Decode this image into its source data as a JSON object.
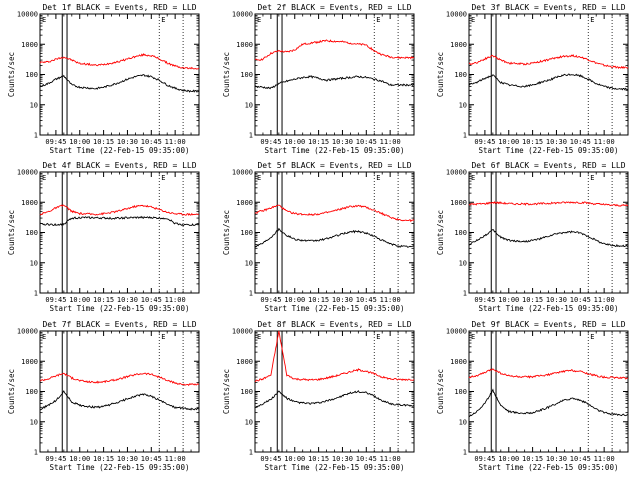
{
  "figure": {
    "title_suffix": "BLACK = Events, RED = LLD",
    "x_ticks": [
      "09:45",
      "10:00",
      "10:15",
      "10:30",
      "10:45",
      "11:00"
    ],
    "y_ticks": [
      "1",
      "10",
      "100",
      "1000",
      "10000"
    ],
    "xlabel": "Start Time (22-Feb-15 09:35:00)",
    "ylabel": "Counts/sec",
    "marker_labels": [
      "E",
      "E"
    ],
    "colors": {
      "events": "#000000",
      "lld": "#ff0000",
      "axes": "#000000"
    }
  },
  "chart_data": [
    {
      "type": "line",
      "title": "Det 1f BLACK = Events, RED = LLD",
      "xlabel": "Start Time (22-Feb-15 09:35:00)",
      "ylabel": "Counts/sec",
      "x_start": "09:35",
      "x_end": "11:15",
      "ylim": [
        1,
        10000
      ],
      "log_y": true,
      "x_minutes": [
        0,
        5,
        10,
        15,
        20,
        25,
        30,
        35,
        40,
        45,
        50,
        55,
        60,
        65,
        70,
        75,
        80,
        85,
        90,
        95,
        100
      ],
      "series": [
        {
          "name": "LLD",
          "color": "#ff0000",
          "values": [
            250,
            260,
            320,
            380,
            300,
            230,
            220,
            200,
            215,
            240,
            270,
            330,
            390,
            450,
            420,
            330,
            240,
            190,
            165,
            160,
            160
          ]
        },
        {
          "name": "Events",
          "color": "#000000",
          "values": [
            40,
            50,
            70,
            90,
            45,
            38,
            36,
            34,
            38,
            45,
            55,
            70,
            85,
            95,
            85,
            65,
            45,
            35,
            30,
            28,
            28
          ]
        }
      ]
    },
    {
      "type": "line",
      "title": "Det 2f BLACK = Events, RED = LLD",
      "xlabel": "Start Time (22-Feb-15 09:35:00)",
      "ylabel": "Counts/sec",
      "x_start": "09:35",
      "x_end": "11:15",
      "ylim": [
        1,
        10000
      ],
      "log_y": true,
      "x_minutes": [
        0,
        5,
        10,
        15,
        20,
        25,
        30,
        35,
        40,
        45,
        50,
        55,
        60,
        65,
        70,
        75,
        80,
        85,
        90,
        95,
        100
      ],
      "series": [
        {
          "name": "LLD",
          "color": "#ff0000",
          "values": [
            300,
            320,
            500,
            600,
            550,
            650,
            1000,
            1100,
            1200,
            1300,
            1250,
            1200,
            1100,
            1000,
            950,
            600,
            450,
            380,
            360,
            360,
            360
          ]
        },
        {
          "name": "Events",
          "color": "#000000",
          "values": [
            40,
            38,
            35,
            50,
            60,
            70,
            80,
            85,
            75,
            65,
            70,
            75,
            80,
            85,
            80,
            70,
            60,
            45,
            45,
            45,
            45
          ]
        }
      ]
    },
    {
      "type": "line",
      "title": "Det 3f BLACK = Events, RED = LLD",
      "xlabel": "Start Time (22-Feb-15 09:35:00)",
      "ylabel": "Counts/sec",
      "x_start": "09:35",
      "x_end": "11:15",
      "ylim": [
        1,
        10000
      ],
      "log_y": true,
      "x_minutes": [
        0,
        5,
        10,
        15,
        20,
        25,
        30,
        35,
        40,
        45,
        50,
        55,
        60,
        65,
        70,
        75,
        80,
        85,
        90,
        95,
        100
      ],
      "series": [
        {
          "name": "LLD",
          "color": "#ff0000",
          "values": [
            220,
            250,
            330,
            420,
            300,
            240,
            230,
            220,
            240,
            270,
            310,
            360,
            400,
            420,
            380,
            310,
            240,
            200,
            180,
            170,
            170
          ]
        },
        {
          "name": "Events",
          "color": "#000000",
          "values": [
            45,
            55,
            75,
            95,
            55,
            45,
            42,
            40,
            45,
            55,
            65,
            80,
            95,
            100,
            90,
            70,
            50,
            40,
            35,
            33,
            33
          ]
        }
      ]
    },
    {
      "type": "line",
      "title": "Det 4f BLACK = Events, RED = LLD",
      "xlabel": "Start Time (22-Feb-15 09:35:00)",
      "ylabel": "Counts/sec",
      "x_start": "09:35",
      "x_end": "11:15",
      "ylim": [
        1,
        10000
      ],
      "log_y": true,
      "x_minutes": [
        0,
        5,
        10,
        15,
        20,
        25,
        30,
        35,
        40,
        45,
        50,
        55,
        60,
        65,
        70,
        75,
        80,
        85,
        90,
        95,
        100
      ],
      "series": [
        {
          "name": "LLD",
          "color": "#ff0000",
          "values": [
            400,
            480,
            650,
            800,
            500,
            420,
            410,
            400,
            420,
            460,
            520,
            620,
            730,
            780,
            700,
            580,
            470,
            420,
            400,
            400,
            400
          ]
        },
        {
          "name": "Events",
          "color": "#000000",
          "values": [
            190,
            185,
            180,
            190,
            300,
            310,
            310,
            305,
            300,
            295,
            300,
            305,
            310,
            315,
            310,
            300,
            295,
            200,
            180,
            180,
            180
          ]
        }
      ]
    },
    {
      "type": "line",
      "title": "Det 5f BLACK = Events, RED = LLD",
      "xlabel": "Start Time (22-Feb-15 09:35:00)",
      "ylabel": "Counts/sec",
      "x_start": "09:35",
      "x_end": "11:15",
      "ylim": [
        1,
        10000
      ],
      "log_y": true,
      "x_minutes": [
        0,
        5,
        10,
        15,
        20,
        25,
        30,
        35,
        40,
        45,
        50,
        55,
        60,
        65,
        70,
        75,
        80,
        85,
        90,
        95,
        100
      ],
      "series": [
        {
          "name": "LLD",
          "color": "#ff0000",
          "values": [
            450,
            520,
            650,
            800,
            500,
            420,
            400,
            390,
            410,
            450,
            520,
            620,
            720,
            760,
            680,
            540,
            420,
            320,
            270,
            250,
            250
          ]
        },
        {
          "name": "Events",
          "color": "#000000",
          "values": [
            35,
            45,
            70,
            130,
            80,
            60,
            55,
            52,
            55,
            62,
            75,
            90,
            105,
            110,
            95,
            75,
            55,
            42,
            36,
            34,
            34
          ]
        }
      ]
    },
    {
      "type": "line",
      "title": "Det 6f BLACK = Events, RED = LLD",
      "xlabel": "Start Time (22-Feb-15 09:35:00)",
      "ylabel": "Counts/sec",
      "x_start": "09:35",
      "x_end": "11:15",
      "ylim": [
        1,
        10000
      ],
      "log_y": true,
      "x_minutes": [
        0,
        5,
        10,
        15,
        20,
        25,
        30,
        35,
        40,
        45,
        50,
        55,
        60,
        65,
        70,
        75,
        80,
        85,
        90,
        95,
        100
      ],
      "series": [
        {
          "name": "LLD",
          "color": "#ff0000",
          "values": [
            850,
            870,
            900,
            980,
            950,
            900,
            880,
            870,
            880,
            900,
            920,
            950,
            980,
            1000,
            980,
            940,
            880,
            830,
            800,
            790,
            790
          ]
        },
        {
          "name": "Events",
          "color": "#000000",
          "values": [
            40,
            55,
            80,
            120,
            70,
            55,
            52,
            50,
            55,
            62,
            75,
            90,
            100,
            105,
            95,
            75,
            55,
            42,
            38,
            36,
            36
          ]
        }
      ]
    },
    {
      "type": "line",
      "title": "Det 7f BLACK = Events, RED = LLD",
      "xlabel": "Start Time (22-Feb-15 09:35:00)",
      "ylabel": "Counts/sec",
      "x_start": "09:35",
      "x_end": "11:15",
      "ylim": [
        1,
        10000
      ],
      "log_y": true,
      "x_minutes": [
        0,
        5,
        10,
        15,
        20,
        25,
        30,
        35,
        40,
        45,
        50,
        55,
        60,
        65,
        70,
        75,
        80,
        85,
        90,
        95,
        100
      ],
      "series": [
        {
          "name": "LLD",
          "color": "#ff0000",
          "values": [
            230,
            260,
            330,
            400,
            280,
            230,
            210,
            200,
            210,
            230,
            260,
            310,
            360,
            400,
            370,
            300,
            230,
            190,
            170,
            170,
            170
          ]
        },
        {
          "name": "Events",
          "color": "#000000",
          "values": [
            25,
            35,
            50,
            100,
            45,
            35,
            32,
            30,
            32,
            38,
            45,
            58,
            70,
            80,
            70,
            52,
            38,
            30,
            28,
            26,
            26
          ]
        }
      ]
    },
    {
      "type": "line",
      "title": "Det 8f BLACK = Events, RED = LLD",
      "xlabel": "Start Time (22-Feb-15 09:35:00)",
      "ylabel": "Counts/sec",
      "x_start": "09:35",
      "x_end": "11:15",
      "ylim": [
        1,
        10000
      ],
      "log_y": true,
      "x_minutes": [
        0,
        5,
        10,
        15,
        20,
        25,
        30,
        35,
        40,
        45,
        50,
        55,
        60,
        65,
        70,
        75,
        80,
        85,
        90,
        95,
        100
      ],
      "series": [
        {
          "name": "LLD",
          "color": "#ff0000",
          "values": [
            220,
            260,
            350,
            10000,
            350,
            260,
            250,
            240,
            250,
            280,
            320,
            380,
            450,
            520,
            470,
            380,
            300,
            260,
            250,
            250,
            250
          ]
        },
        {
          "name": "Events",
          "color": "#000000",
          "values": [
            30,
            40,
            55,
            100,
            60,
            45,
            42,
            40,
            42,
            48,
            58,
            72,
            88,
            100,
            90,
            70,
            50,
            40,
            36,
            35,
            35
          ]
        }
      ]
    },
    {
      "type": "line",
      "title": "Det 9f BLACK = Events, RED = LLD",
      "xlabel": "Start Time (22-Feb-15 09:35:00)",
      "ylabel": "Counts/sec",
      "x_start": "09:35",
      "x_end": "11:15",
      "ylim": [
        1,
        10000
      ],
      "log_y": true,
      "x_minutes": [
        0,
        5,
        10,
        15,
        20,
        25,
        30,
        35,
        40,
        45,
        50,
        55,
        60,
        65,
        70,
        75,
        80,
        85,
        90,
        95,
        100
      ],
      "series": [
        {
          "name": "LLD",
          "color": "#ff0000",
          "values": [
            300,
            330,
            420,
            560,
            400,
            330,
            310,
            300,
            310,
            330,
            360,
            410,
            470,
            500,
            460,
            390,
            330,
            300,
            290,
            280,
            280
          ]
        },
        {
          "name": "Events",
          "color": "#000000",
          "values": [
            15,
            22,
            40,
            110,
            35,
            22,
            20,
            19,
            20,
            24,
            30,
            40,
            52,
            60,
            52,
            38,
            26,
            20,
            18,
            17,
            17
          ]
        }
      ]
    }
  ]
}
